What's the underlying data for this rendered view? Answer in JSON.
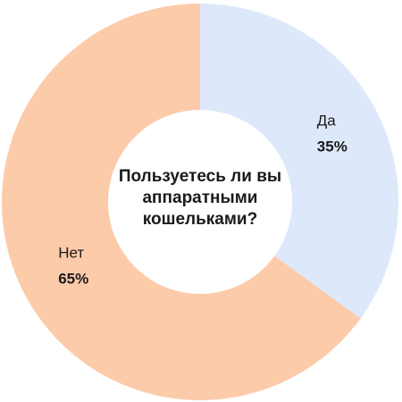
{
  "chart_data": {
    "type": "donut",
    "title": "Пользуетесь ли вы аппаратными кошельками?",
    "categories": [
      "Да",
      "Нет"
    ],
    "values": [
      35,
      65
    ],
    "value_labels": [
      "35%",
      "65%"
    ],
    "colors": [
      "#dde8fb",
      "#fccbaa"
    ]
  }
}
